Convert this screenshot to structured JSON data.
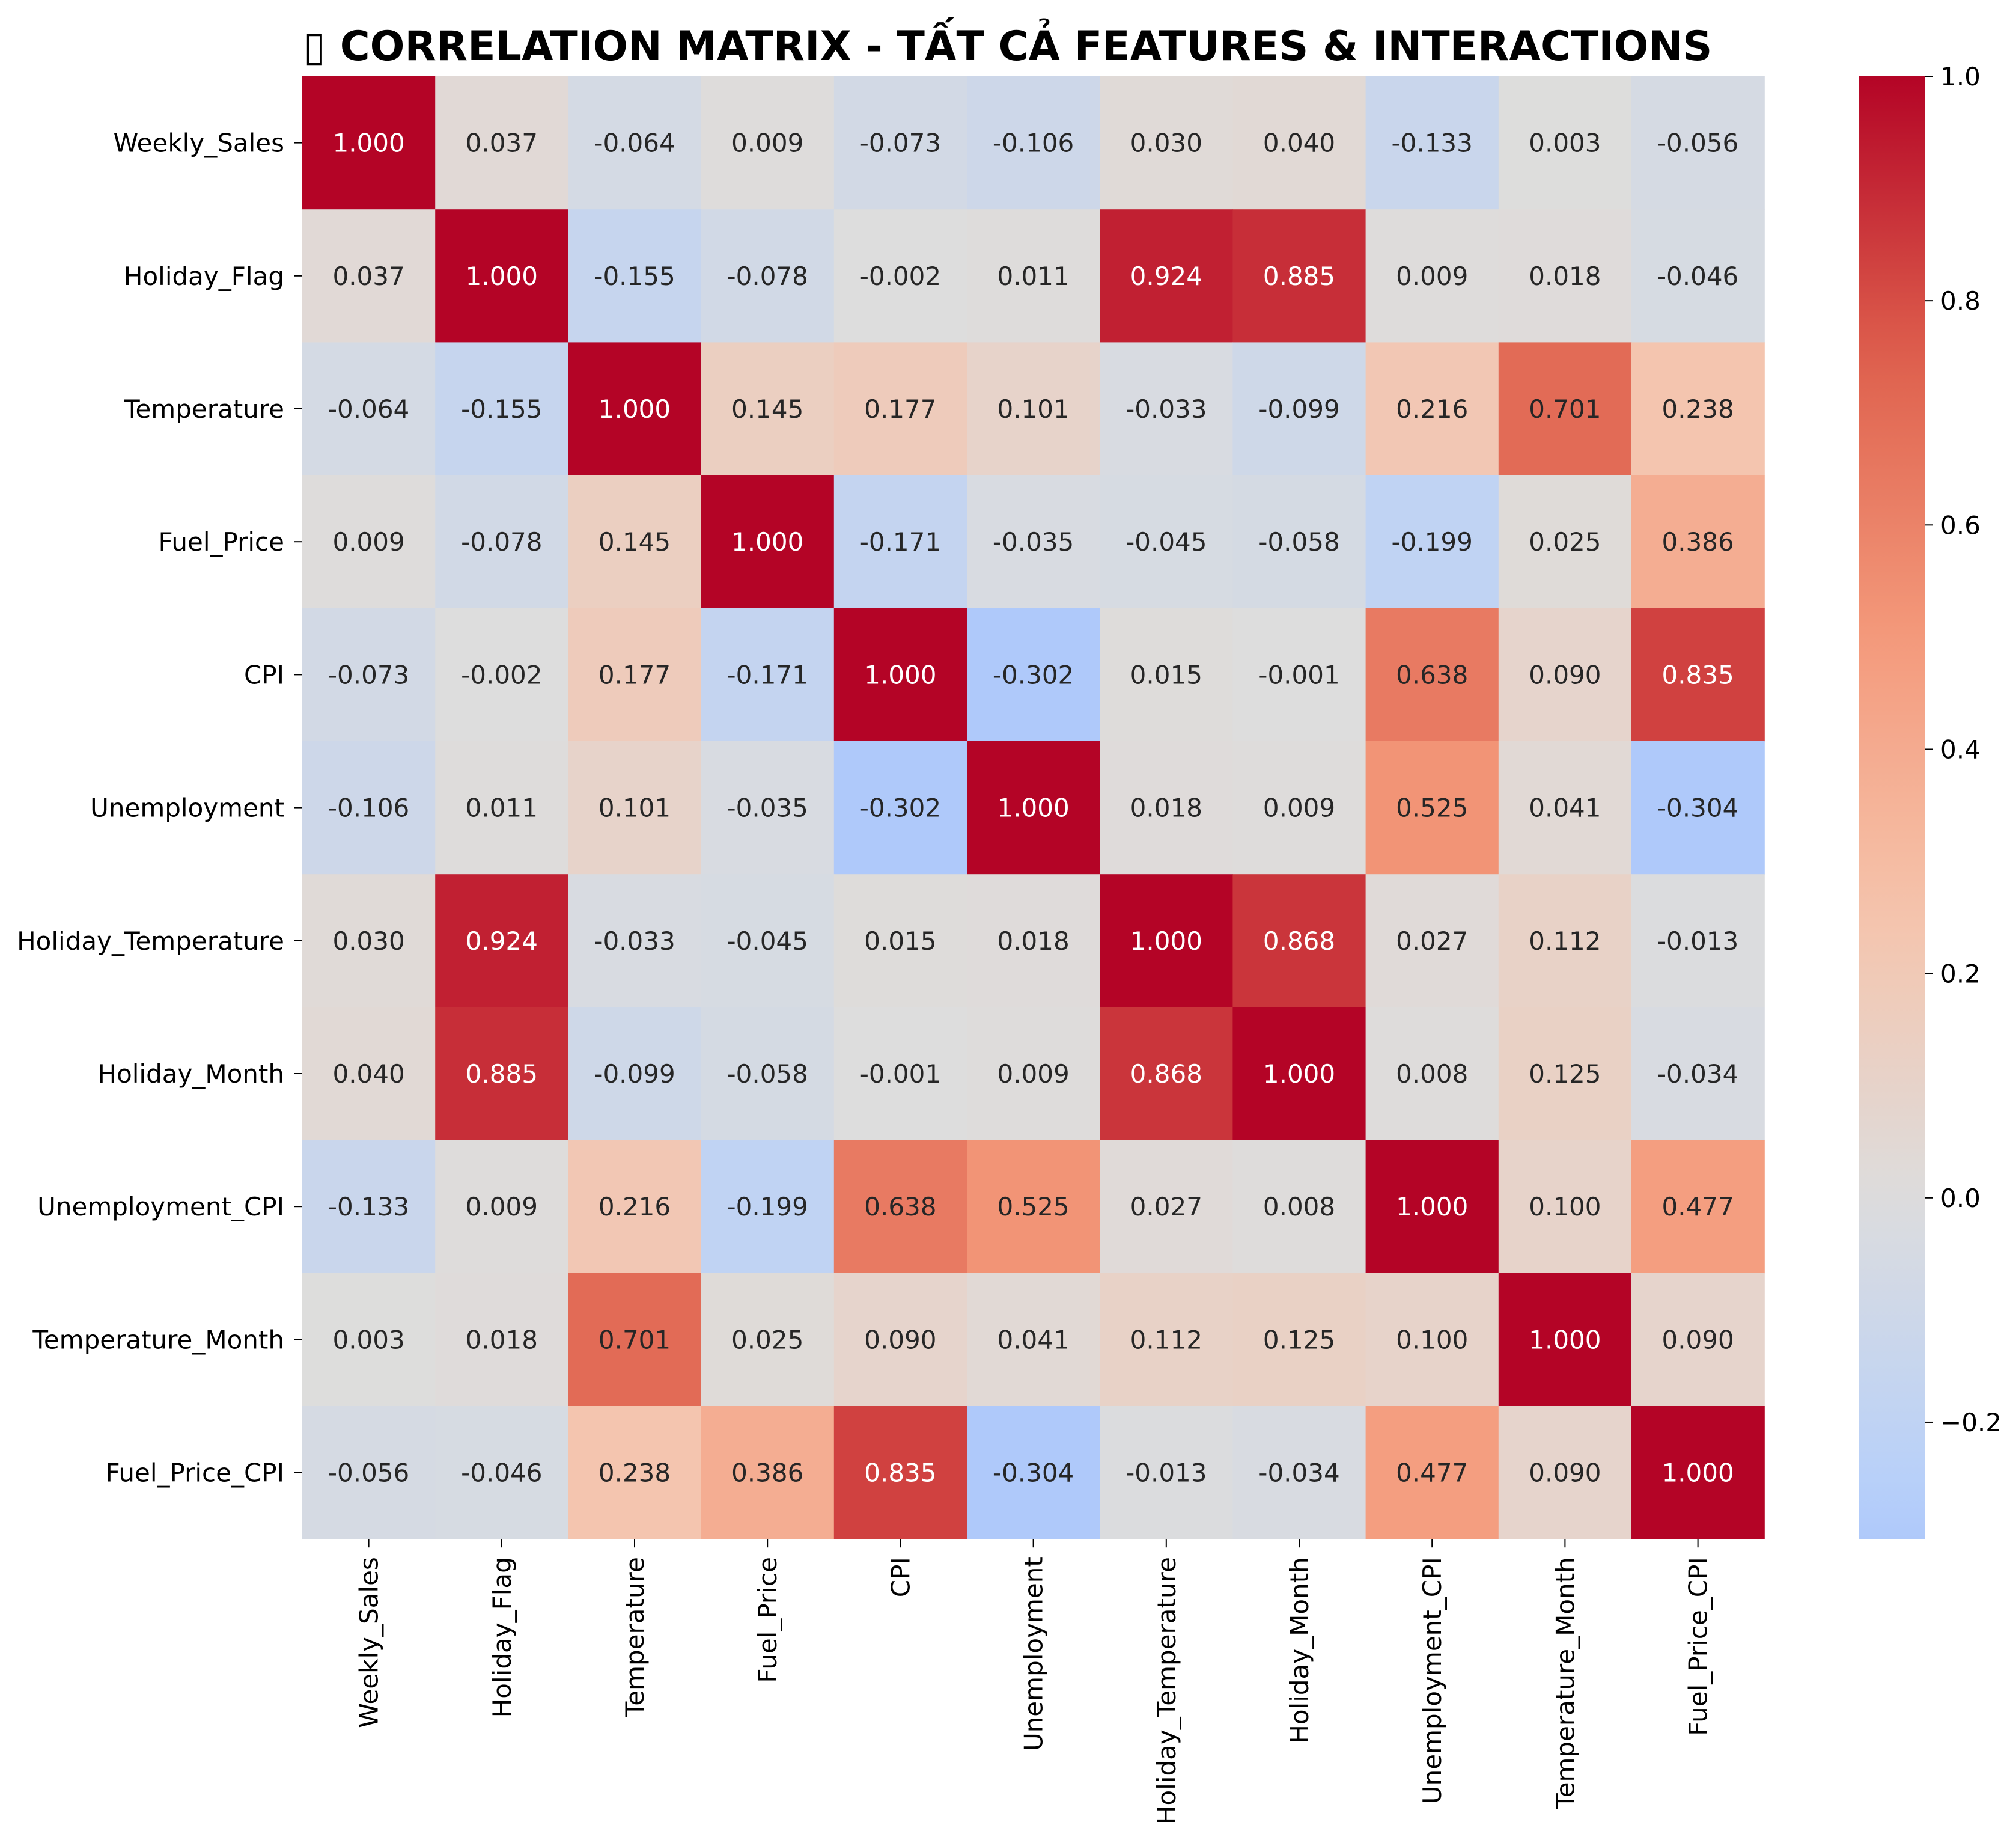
{
  "chart_data": {
    "type": "heatmap",
    "title": "▯ CORRELATION MATRIX - TẤT CẢ FEATURES & INTERACTIONS",
    "labels": [
      "Weekly_Sales",
      "Holiday_Flag",
      "Temperature",
      "Fuel_Price",
      "CPI",
      "Unemployment",
      "Holiday_Temperature",
      "Holiday_Month",
      "Unemployment_CPI",
      "Temperature_Month",
      "Fuel_Price_CPI"
    ],
    "values": [
      [
        1.0,
        0.037,
        -0.064,
        0.009,
        -0.073,
        -0.106,
        0.03,
        0.04,
        -0.133,
        0.003,
        -0.056
      ],
      [
        0.037,
        1.0,
        -0.155,
        -0.078,
        -0.002,
        0.011,
        0.924,
        0.885,
        0.009,
        0.018,
        -0.046
      ],
      [
        -0.064,
        -0.155,
        1.0,
        0.145,
        0.177,
        0.101,
        -0.033,
        -0.099,
        0.216,
        0.701,
        0.238
      ],
      [
        0.009,
        -0.078,
        0.145,
        1.0,
        -0.171,
        -0.035,
        -0.045,
        -0.058,
        -0.199,
        0.025,
        0.386
      ],
      [
        -0.073,
        -0.002,
        0.177,
        -0.171,
        1.0,
        -0.302,
        0.015,
        -0.001,
        0.638,
        0.09,
        0.835
      ],
      [
        -0.106,
        0.011,
        0.101,
        -0.035,
        -0.302,
        1.0,
        0.018,
        0.009,
        0.525,
        0.041,
        -0.304
      ],
      [
        0.03,
        0.924,
        -0.033,
        -0.045,
        0.015,
        0.018,
        1.0,
        0.868,
        0.027,
        0.112,
        -0.013
      ],
      [
        0.04,
        0.885,
        -0.099,
        -0.058,
        -0.001,
        0.009,
        0.868,
        1.0,
        0.008,
        0.125,
        -0.034
      ],
      [
        -0.133,
        0.009,
        0.216,
        -0.199,
        0.638,
        0.525,
        0.027,
        0.008,
        1.0,
        0.1,
        0.477
      ],
      [
        0.003,
        0.018,
        0.701,
        0.025,
        0.09,
        0.041,
        0.112,
        0.125,
        0.1,
        1.0,
        0.09
      ],
      [
        -0.056,
        -0.046,
        0.238,
        0.386,
        0.835,
        -0.304,
        -0.013,
        -0.034,
        0.477,
        0.09,
        1.0
      ]
    ],
    "colormap": "coolwarm",
    "center": 0.0,
    "vmin": -0.304,
    "vmax": 1.0,
    "colorbar_ticks": [
      1.0,
      0.8,
      0.6,
      0.4,
      0.2,
      0.0,
      -0.2
    ],
    "colorbar_tick_labels": [
      "1.0",
      "0.8",
      "0.6",
      "0.4",
      "0.2",
      "0.0",
      "−0.2"
    ],
    "legend_position": "right"
  }
}
